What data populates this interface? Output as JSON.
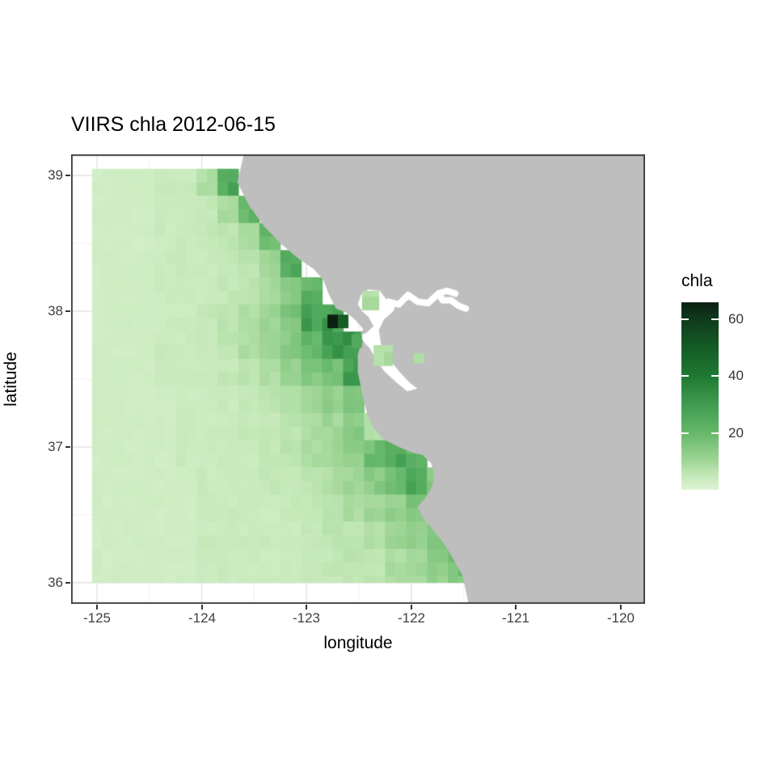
{
  "title": "VIIRS chla 2012-06-15",
  "axes": {
    "x": {
      "label": "longitude",
      "ticks": [
        "-125",
        "-124",
        "-123",
        "-122",
        "-121",
        "-120"
      ],
      "tick_values": [
        -125,
        -124,
        -123,
        -122,
        -121,
        -120
      ]
    },
    "y": {
      "label": "latitude",
      "ticks": [
        "39",
        "38",
        "37",
        "36"
      ],
      "tick_values": [
        39,
        38,
        37,
        36
      ]
    }
  },
  "legend": {
    "title": "chla",
    "ticks": [
      "60",
      "40",
      "20"
    ],
    "tick_values": [
      60,
      40,
      20
    ],
    "domain": [
      0,
      66
    ]
  },
  "colors": {
    "land": "#bebebe",
    "no_data": "#ffffff",
    "panel_border": "#333333",
    "grid_major": "#e3e3e3",
    "grid_minor": "#f0f0f0",
    "background": "#ffffff",
    "scale_stops": [
      {
        "v": 0,
        "c": "#def4d5"
      },
      {
        "v": 5,
        "c": "#c4e8b8"
      },
      {
        "v": 10,
        "c": "#a0d696"
      },
      {
        "v": 20,
        "c": "#66b86a"
      },
      {
        "v": 30,
        "c": "#3f9c50"
      },
      {
        "v": 40,
        "c": "#1e7a32"
      },
      {
        "v": 50,
        "c": "#155c26"
      },
      {
        "v": 60,
        "c": "#0f3a1c"
      },
      {
        "v": 66,
        "c": "#0b2012"
      }
    ]
  },
  "chart_data": {
    "type": "heatmap",
    "title": "VIIRS chla 2012-06-15",
    "xlabel": "longitude",
    "ylabel": "latitude",
    "xlim": [
      -125.3,
      -119.77
    ],
    "ylim": [
      35.85,
      39.15
    ],
    "value_name": "chla",
    "value_range": [
      0,
      66
    ],
    "cell_size_deg": 0.1,
    "grid": {
      "comment": "coarse 0.2-deg chla grid; lon left edge -125.05, lat top edge 39.05; -1 = land/masked, 0 = no-data (white)",
      "lon0": -125.05,
      "lat0": 39.05,
      "dlon": 0.2,
      "dlat": 0.2,
      "ncols": 26,
      "nrows": 16,
      "values": [
        [
          3,
          3,
          3,
          4,
          4,
          8,
          25,
          0,
          -1,
          -1,
          -1,
          -1,
          -1,
          -1,
          -1,
          -1,
          -1,
          -1,
          -1,
          -1,
          -1,
          -1,
          -1,
          -1,
          -1,
          -1
        ],
        [
          3,
          3,
          3,
          4,
          4,
          5,
          8,
          22,
          0,
          -1,
          -1,
          -1,
          -1,
          -1,
          -1,
          -1,
          -1,
          -1,
          -1,
          -1,
          -1,
          -1,
          -1,
          -1,
          -1,
          -1
        ],
        [
          3,
          3,
          3,
          4,
          4,
          5,
          6,
          8,
          20,
          0,
          -1,
          -1,
          -1,
          -1,
          -1,
          -1,
          -1,
          -1,
          -1,
          -1,
          -1,
          -1,
          -1,
          -1,
          -1,
          -1
        ],
        [
          3,
          3,
          3,
          4,
          4,
          4,
          5,
          6,
          10,
          25,
          0,
          -1,
          -1,
          -1,
          -1,
          -1,
          -1,
          -1,
          -1,
          -1,
          -1,
          -1,
          -1,
          -1,
          -1,
          -1
        ],
        [
          3,
          3,
          3,
          4,
          4,
          4,
          5,
          6,
          9,
          14,
          22,
          -1,
          -1,
          -1,
          -1,
          -1,
          -1,
          -1,
          -1,
          -1,
          -1,
          -1,
          -1,
          -1,
          -1,
          -1
        ],
        [
          3,
          3,
          3,
          4,
          4,
          5,
          6,
          8,
          10,
          16,
          28,
          30,
          -1,
          -1,
          -1,
          -1,
          -1,
          -1,
          -1,
          -1,
          -1,
          -1,
          -1,
          -1,
          -1,
          -1
        ],
        [
          3,
          3,
          3,
          4,
          4,
          5,
          6,
          8,
          10,
          14,
          20,
          30,
          33,
          -1,
          -1,
          -1,
          -1,
          -1,
          -1,
          -1,
          -1,
          -1,
          -1,
          -1,
          -1,
          -1
        ],
        [
          3,
          3,
          3,
          4,
          4,
          4,
          5,
          6,
          8,
          12,
          15,
          18,
          28,
          0,
          -1,
          -1,
          -1,
          -1,
          -1,
          -1,
          -1,
          -1,
          -1,
          -1,
          -1,
          -1
        ],
        [
          3,
          3,
          3,
          3,
          4,
          4,
          4,
          5,
          6,
          8,
          10,
          12,
          15,
          0,
          -1,
          -1,
          -1,
          -1,
          -1,
          -1,
          -1,
          -1,
          -1,
          -1,
          -1,
          -1
        ],
        [
          3,
          3,
          3,
          3,
          4,
          4,
          4,
          5,
          5,
          6,
          8,
          10,
          14,
          8,
          -1,
          -1,
          -1,
          -1,
          -1,
          -1,
          -1,
          -1,
          -1,
          -1,
          -1,
          -1
        ],
        [
          3,
          3,
          3,
          3,
          4,
          4,
          4,
          4,
          5,
          6,
          8,
          10,
          12,
          18,
          25,
          22,
          0,
          -1,
          -1,
          -1,
          -1,
          -1,
          -1,
          -1,
          -1,
          -1
        ],
        [
          3,
          3,
          3,
          3,
          3,
          4,
          4,
          4,
          5,
          5,
          6,
          8,
          10,
          14,
          20,
          28,
          14,
          -1,
          -1,
          -1,
          -1,
          -1,
          -1,
          -1,
          -1,
          -1
        ],
        [
          3,
          3,
          3,
          3,
          3,
          4,
          4,
          4,
          4,
          5,
          5,
          6,
          8,
          10,
          12,
          15,
          18,
          0,
          -1,
          -1,
          -1,
          -1,
          -1,
          -1,
          -1,
          -1
        ],
        [
          3,
          3,
          3,
          3,
          3,
          4,
          4,
          4,
          4,
          4,
          5,
          6,
          6,
          8,
          10,
          12,
          14,
          10,
          -1,
          -1,
          -1,
          -1,
          -1,
          -1,
          -1,
          -1
        ],
        [
          3,
          3,
          3,
          3,
          3,
          4,
          4,
          4,
          4,
          4,
          5,
          5,
          6,
          6,
          8,
          10,
          14,
          18,
          0,
          -1,
          -1,
          -1,
          -1,
          -1,
          -1,
          -1
        ],
        [
          3,
          3,
          3,
          3,
          3,
          4,
          4,
          4,
          4,
          4,
          5,
          5,
          6,
          6,
          8,
          10,
          12,
          16,
          20,
          -1,
          -1,
          -1,
          -1,
          -1,
          -1,
          -1
        ]
      ]
    },
    "hotspots": [
      {
        "lon": -122.75,
        "lat": 37.925,
        "v": 66
      },
      {
        "lon": -122.65,
        "lat": 37.925,
        "v": 50
      },
      {
        "lon": -122.52,
        "lat": 37.78,
        "v": 25
      }
    ],
    "bay_patches": [
      {
        "lon0": -122.47,
        "lon1": -122.31,
        "lat0": 38.01,
        "lat1": 38.15,
        "v": 8
      },
      {
        "lon0": -122.36,
        "lon1": -122.18,
        "lat0": 37.6,
        "lat1": 37.75,
        "v": 8
      },
      {
        "lon0": -121.98,
        "lon1": -121.88,
        "lat0": 37.62,
        "lat1": 37.69,
        "v": 8
      }
    ],
    "land_polygon": [
      [
        -123.6,
        39.15
      ],
      [
        -123.66,
        38.95
      ],
      [
        -123.55,
        38.78
      ],
      [
        -123.4,
        38.62
      ],
      [
        -123.25,
        38.5
      ],
      [
        -123.08,
        38.39
      ],
      [
        -122.93,
        38.31
      ],
      [
        -122.84,
        38.23
      ],
      [
        -122.79,
        38.13
      ],
      [
        -122.72,
        38.02
      ],
      [
        -122.62,
        37.99
      ],
      [
        -122.54,
        37.94
      ],
      [
        -122.46,
        37.87
      ],
      [
        -122.49,
        37.82
      ],
      [
        -122.43,
        37.8
      ],
      [
        -122.48,
        37.76
      ],
      [
        -122.51,
        37.68
      ],
      [
        -122.51,
        37.55
      ],
      [
        -122.47,
        37.4
      ],
      [
        -122.42,
        37.24
      ],
      [
        -122.36,
        37.14
      ],
      [
        -122.27,
        37.06
      ],
      [
        -122.12,
        37.0
      ],
      [
        -121.99,
        36.96
      ],
      [
        -121.89,
        36.94
      ],
      [
        -121.81,
        36.88
      ],
      [
        -121.78,
        36.8
      ],
      [
        -121.8,
        36.71
      ],
      [
        -121.87,
        36.62
      ],
      [
        -121.94,
        36.56
      ],
      [
        -121.88,
        36.47
      ],
      [
        -121.78,
        36.38
      ],
      [
        -121.69,
        36.29
      ],
      [
        -121.61,
        36.19
      ],
      [
        -121.51,
        36.05
      ],
      [
        -121.44,
        35.8
      ],
      [
        -119.6,
        35.8
      ],
      [
        -119.6,
        39.15
      ]
    ],
    "bay_polygon": [
      [
        -122.49,
        37.82
      ],
      [
        -122.43,
        37.84
      ],
      [
        -122.36,
        37.89
      ],
      [
        -122.41,
        37.96
      ],
      [
        -122.47,
        38.0
      ],
      [
        -122.51,
        38.05
      ],
      [
        -122.48,
        38.12
      ],
      [
        -122.41,
        38.16
      ],
      [
        -122.3,
        38.15
      ],
      [
        -122.24,
        38.09
      ],
      [
        -122.14,
        38.07
      ],
      [
        -122.17,
        38.0
      ],
      [
        -122.26,
        37.94
      ],
      [
        -122.31,
        37.86
      ],
      [
        -122.29,
        37.76
      ],
      [
        -122.22,
        37.66
      ],
      [
        -122.12,
        37.56
      ],
      [
        -122.01,
        37.47
      ],
      [
        -121.94,
        37.43
      ],
      [
        -122.04,
        37.41
      ],
      [
        -122.15,
        37.48
      ],
      [
        -122.26,
        37.56
      ],
      [
        -122.34,
        37.65
      ],
      [
        -122.4,
        37.73
      ],
      [
        -122.46,
        37.78
      ]
    ],
    "delta_channel": [
      [
        -122.22,
        38.07
      ],
      [
        -122.12,
        38.05
      ],
      [
        -122.03,
        38.12
      ],
      [
        -121.94,
        38.07
      ],
      [
        -121.84,
        38.06
      ],
      [
        -121.74,
        38.13
      ],
      [
        -121.7,
        38.08
      ],
      [
        -121.62,
        38.08
      ],
      [
        -121.55,
        38.04
      ],
      [
        -121.48,
        38.02
      ]
    ],
    "delta_branch": [
      [
        -121.74,
        38.13
      ],
      [
        -121.66,
        38.15
      ],
      [
        -121.58,
        38.13
      ]
    ]
  }
}
